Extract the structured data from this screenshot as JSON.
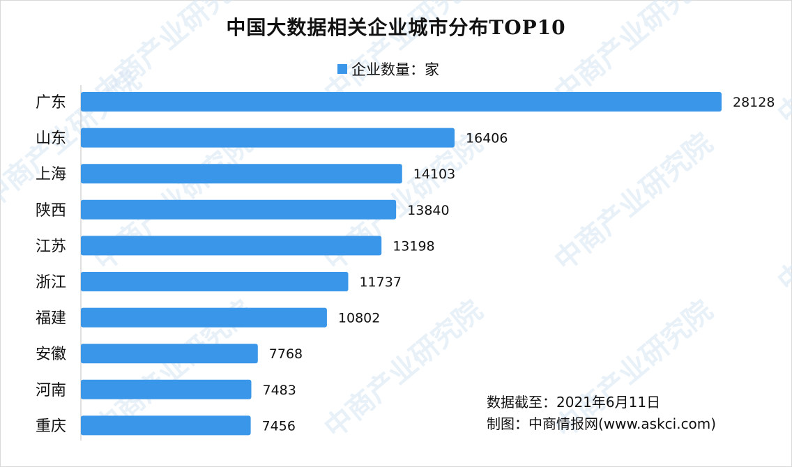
{
  "chart_data": {
    "type": "bar",
    "orientation": "horizontal",
    "title": "中国大数据相关企业城市分布TOP10",
    "categories": [
      "广东",
      "山东",
      "上海",
      "陕西",
      "江苏",
      "浙江",
      "福建",
      "安徽",
      "河南",
      "重庆"
    ],
    "series": [
      {
        "name": "企业数量：家",
        "values": [
          28128,
          16406,
          14103,
          13840,
          13198,
          11737,
          10802,
          7768,
          7483,
          7456
        ]
      }
    ],
    "xlim": [
      0,
      28128
    ],
    "grid": false,
    "legend_position": "top"
  },
  "colors": {
    "bar": "#3a96e8",
    "text": "#111111",
    "watermark": "#d6e4f2"
  },
  "watermark_text": "中商产业研究院",
  "source": {
    "date_line": "数据截至：2021年6月11日",
    "credit_line": "制图：中商情报网(www.askci.com)"
  }
}
